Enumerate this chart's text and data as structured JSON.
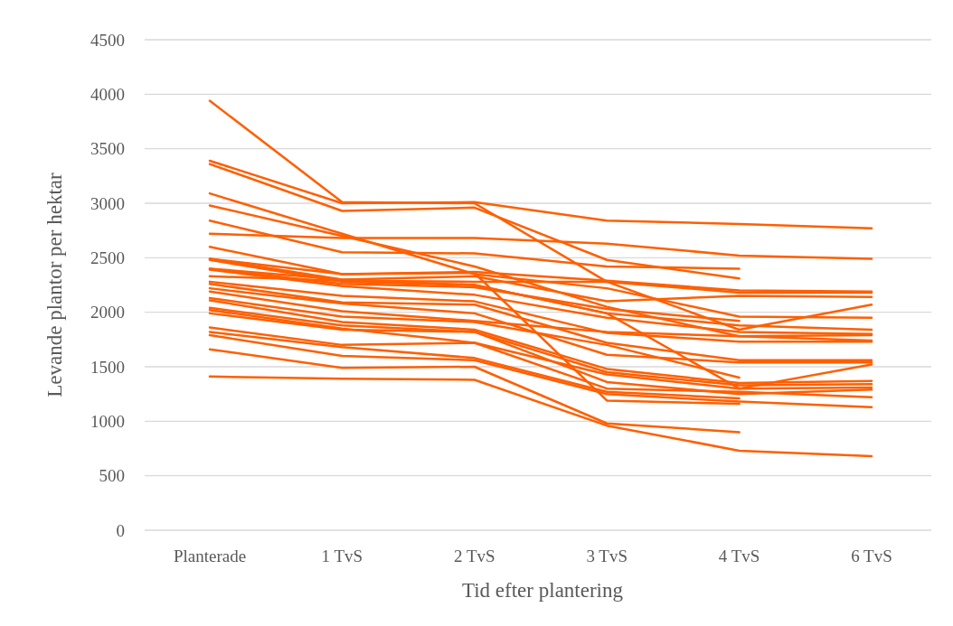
{
  "chart_data": {
    "type": "line",
    "xlabel": "Tid efter plantering",
    "ylabel": "Levande plantor per hektar",
    "categories": [
      "Planterade",
      "1 TvS",
      "2 TvS",
      "3 TvS",
      "4 TvS",
      "6 TvS"
    ],
    "ylim": [
      0,
      4500
    ],
    "yticks": [
      0,
      500,
      1000,
      1500,
      2000,
      2500,
      3000,
      3500,
      4000,
      4500
    ],
    "grid": "y",
    "marker": "none",
    "line_style": "solid",
    "series": [
      {
        "color": "#ff5f00",
        "values": [
          3940,
          3010,
          3000,
          2280,
          1840,
          2070
        ]
      },
      {
        "color": "#ff5f00",
        "values": [
          3390,
          3000,
          3010,
          2840,
          2810,
          2770
        ]
      },
      {
        "color": "#ff5f00",
        "values": [
          3360,
          2930,
          2960,
          2480,
          2310,
          null
        ]
      },
      {
        "color": "#ff5f00",
        "values": [
          3090,
          2720,
          2350,
          2220,
          1960,
          1950
        ]
      },
      {
        "color": "#ff5f00",
        "values": [
          2980,
          2700,
          2420,
          2050,
          1780,
          1740
        ]
      },
      {
        "color": "#ff5f00",
        "values": [
          2840,
          2550,
          2540,
          2420,
          2400,
          null
        ]
      },
      {
        "color": "#ff5f00",
        "values": [
          2720,
          2680,
          2680,
          2630,
          2520,
          2490
        ]
      },
      {
        "color": "#ff5f00",
        "values": [
          2600,
          2350,
          2370,
          2290,
          2200,
          2190
        ]
      },
      {
        "color": "#ff5f00",
        "values": [
          2490,
          2300,
          2330,
          2100,
          2150,
          2140
        ]
      },
      {
        "color": "#ff5f00",
        "values": [
          2480,
          2280,
          2250,
          1990,
          1880,
          1840
        ]
      },
      {
        "color": "#ff5f00",
        "values": [
          2400,
          2260,
          2230,
          2030,
          1920,
          null
        ]
      },
      {
        "color": "#ff5f00",
        "values": [
          2390,
          2240,
          2160,
          1950,
          1820,
          1800
        ]
      },
      {
        "color": "#ff5f00",
        "values": [
          2330,
          2290,
          2280,
          2280,
          2180,
          2180
        ]
      },
      {
        "color": "#ff5f00",
        "values": [
          2280,
          2150,
          2100,
          1810,
          1730,
          1730
        ]
      },
      {
        "color": "#ff5f00",
        "values": [
          2260,
          2090,
          2070,
          1720,
          1560,
          1560
        ]
      },
      {
        "color": "#ff5f00",
        "values": [
          2220,
          2080,
          1990,
          1610,
          1540,
          1540
        ]
      },
      {
        "color": "#ff5f00",
        "values": [
          2190,
          2010,
          1920,
          1820,
          1780,
          1790
        ]
      },
      {
        "color": "#ff5f00",
        "values": [
          2130,
          1960,
          1910,
          1700,
          1400,
          null
        ]
      },
      {
        "color": "#ff5f00",
        "values": [
          2110,
          1910,
          1840,
          1480,
          1350,
          1370
        ]
      },
      {
        "color": "#ff5f00",
        "values": [
          2040,
          1880,
          1820,
          1450,
          1330,
          1340
        ]
      },
      {
        "color": "#ff5f00",
        "values": [
          2020,
          1850,
          1720,
          1430,
          1300,
          1310
        ]
      },
      {
        "color": "#ff5f00",
        "values": [
          1990,
          1840,
          1820,
          1360,
          1250,
          1290
        ]
      },
      {
        "color": "#ff5f00",
        "values": [
          1860,
          1700,
          1720,
          1300,
          1270,
          1220
        ]
      },
      {
        "color": "#ff5f00",
        "values": [
          1820,
          1680,
          1580,
          1270,
          1210,
          null
        ]
      },
      {
        "color": "#ff5f00",
        "values": [
          1790,
          1600,
          1560,
          1250,
          1180,
          1130
        ]
      },
      {
        "color": "#ff5f00",
        "values": [
          1660,
          1490,
          1500,
          980,
          900,
          null
        ]
      },
      {
        "color": "#ff5f00",
        "values": [
          1410,
          1390,
          1380,
          960,
          730,
          680
        ]
      },
      {
        "color": "#ff5f00",
        "values": [
          2490,
          2350,
          2360,
          1190,
          1160,
          null
        ]
      },
      {
        "color": "#ff5f00",
        "values": [
          2400,
          2300,
          2250,
          1990,
          1300,
          1520
        ]
      }
    ]
  }
}
